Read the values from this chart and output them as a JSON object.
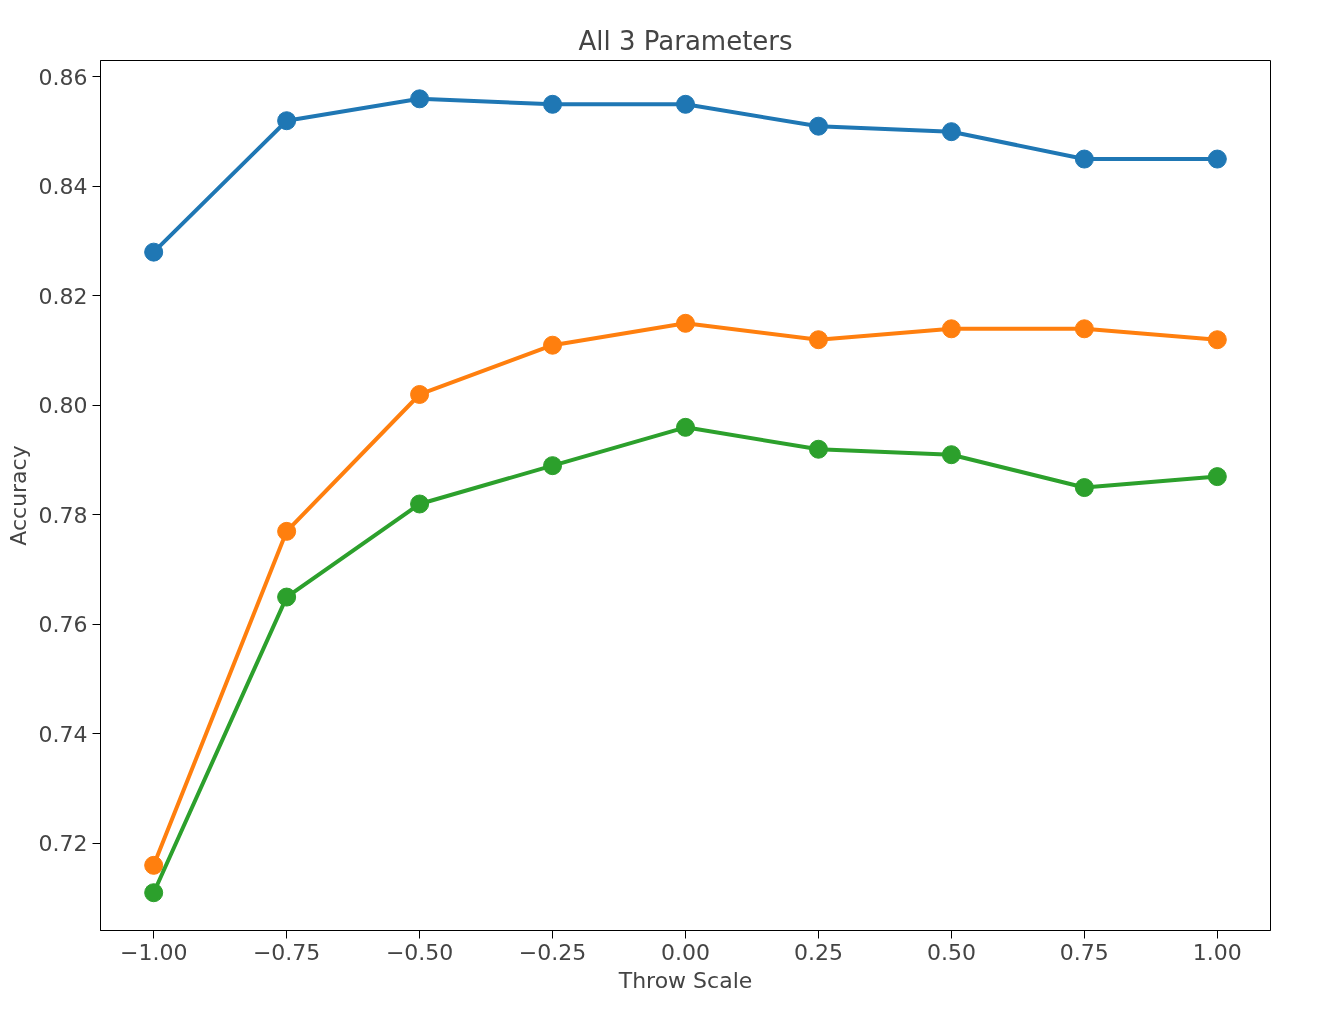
{
  "chart_data": {
    "type": "line",
    "title": "All 3 Parameters",
    "xlabel": "Throw Scale",
    "ylabel": "Accuracy",
    "x": [
      -1.0,
      -0.75,
      -0.5,
      -0.25,
      0.0,
      0.25,
      0.5,
      0.75,
      1.0
    ],
    "series": [
      {
        "color": "#1f77b4",
        "values": [
          0.828,
          0.852,
          0.856,
          0.855,
          0.855,
          0.851,
          0.85,
          0.845,
          0.845
        ]
      },
      {
        "color": "#ff7f0e",
        "values": [
          0.716,
          0.777,
          0.802,
          0.811,
          0.815,
          0.812,
          0.814,
          0.814,
          0.812
        ]
      },
      {
        "color": "#2ca02c",
        "values": [
          0.711,
          0.765,
          0.782,
          0.789,
          0.796,
          0.792,
          0.791,
          0.785,
          0.787
        ]
      }
    ],
    "xlim": [
      -1.1,
      1.1
    ],
    "ylim": [
      0.7041,
      0.863
    ],
    "xticks": [
      {
        "value": -1.0,
        "label": "−1.00"
      },
      {
        "value": -0.75,
        "label": "−0.75"
      },
      {
        "value": -0.5,
        "label": "−0.50"
      },
      {
        "value": -0.25,
        "label": "−0.25"
      },
      {
        "value": 0.0,
        "label": "0.00"
      },
      {
        "value": 0.25,
        "label": "0.25"
      },
      {
        "value": 0.5,
        "label": "0.50"
      },
      {
        "value": 0.75,
        "label": "0.75"
      },
      {
        "value": 1.0,
        "label": "1.00"
      }
    ],
    "yticks": [
      {
        "value": 0.72,
        "label": "0.72"
      },
      {
        "value": 0.74,
        "label": "0.74"
      },
      {
        "value": 0.76,
        "label": "0.76"
      },
      {
        "value": 0.78,
        "label": "0.78"
      },
      {
        "value": 0.8,
        "label": "0.80"
      },
      {
        "value": 0.82,
        "label": "0.82"
      },
      {
        "value": 0.84,
        "label": "0.84"
      },
      {
        "value": 0.86,
        "label": "0.86"
      }
    ],
    "grid": false,
    "marker": "circle",
    "line_style": "solid"
  }
}
